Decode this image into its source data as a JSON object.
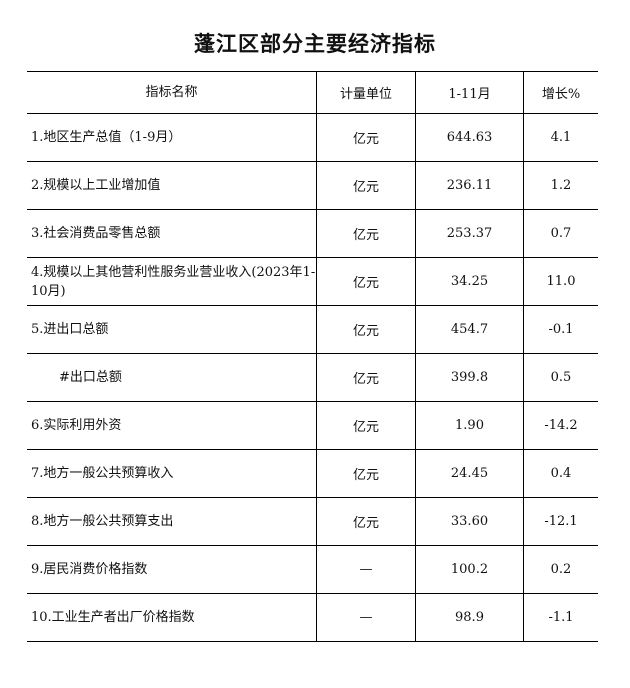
{
  "title": "蓬江区部分主要经济指标",
  "headers": [
    "指标名称",
    "计量单位",
    "1-11月",
    "增长%"
  ],
  "rows": [
    {
      "name": "1.地区生产总值（1-9月）",
      "unit": "亿元",
      "value": "644.63",
      "growth": "4.1"
    },
    {
      "name": "2.规模以上工业增加值",
      "unit": "亿元",
      "value": "236.11",
      "growth": "1.2"
    },
    {
      "name": "3.社会消费品零售总额",
      "unit": "亿元",
      "value": "253.37",
      "growth": "0.7"
    },
    {
      "name": "4.规模以上其他营利性服务业营业收入(2023年1-10月)",
      "unit": "亿元",
      "value": "34.25",
      "growth": "11.0"
    },
    {
      "name": "5.进出口总额",
      "unit": "亿元",
      "value": "454.7",
      "growth": "-0.1"
    },
    {
      "name": "#出口总额",
      "unit": "亿元",
      "value": "399.8",
      "growth": "0.5"
    },
    {
      "name": "6.实际利用外资",
      "unit": "亿元",
      "value": "1.90",
      "growth": "-14.2"
    },
    {
      "name": "7.地方一般公共预算收入",
      "unit": "亿元",
      "value": "24.45",
      "growth": "0.4"
    },
    {
      "name": "8.地方一般公共预算支出",
      "unit": "亿元",
      "value": "33.60",
      "growth": "-12.1"
    },
    {
      "name": "9.居民消费价格指数",
      "unit": "—",
      "value": "100.2",
      "growth": "0.2"
    },
    {
      "name": "10.工业生产者出厂价格指数",
      "unit": "—",
      "value": "98.9",
      "growth": "-1.1"
    }
  ]
}
